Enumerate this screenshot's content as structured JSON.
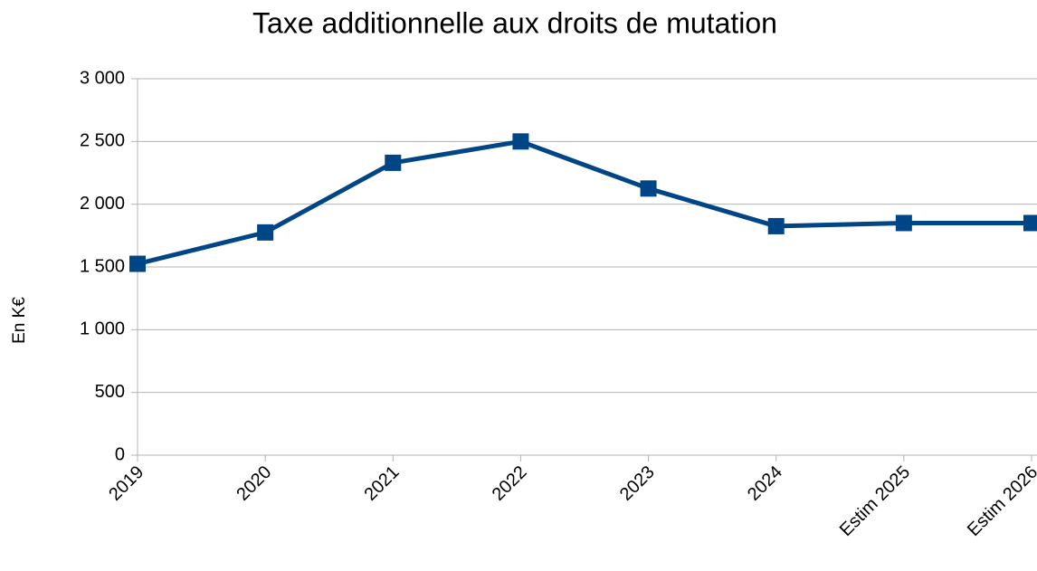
{
  "chart_data": {
    "type": "line",
    "title": "Taxe additionnelle aux droits de mutation",
    "ylabel": "En K€",
    "categories": [
      "2019",
      "2020",
      "2021",
      "2022",
      "2023",
      "2024",
      "Estim 2025",
      "Estim 2026"
    ],
    "series": [
      {
        "name": "Taxe additionnelle aux droits de mutation",
        "color": "#004586",
        "values": [
          1525,
          1775,
          2330,
          2500,
          2125,
          1825,
          1850,
          1850
        ]
      }
    ],
    "ylim": [
      0,
      3000
    ],
    "yticks": [
      0,
      500,
      {
        "value": 1000,
        "label": "1 000"
      },
      {
        "value": 1500,
        "label": "1 500"
      },
      {
        "value": 2000,
        "label": "2 000"
      },
      {
        "value": 2500,
        "label": "2 500"
      },
      {
        "value": 3000,
        "label": "3 000"
      }
    ],
    "grid": true
  }
}
